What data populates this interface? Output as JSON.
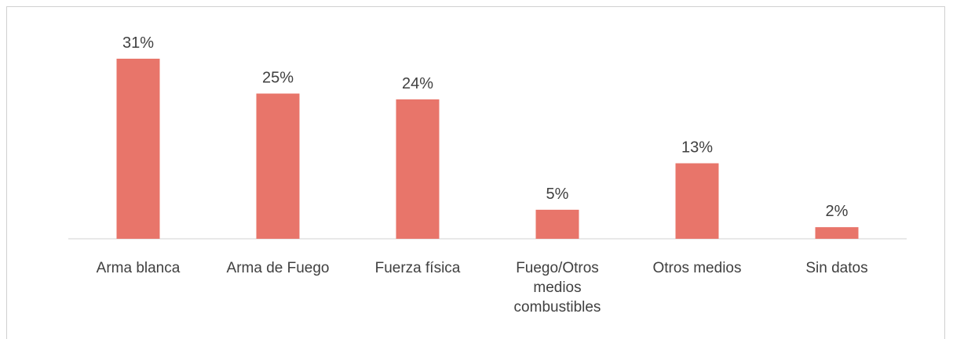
{
  "chart_data": {
    "type": "bar",
    "categories": [
      "Arma blanca",
      "Arma de Fuego",
      "Fuerza física",
      "Fuego/Otros medios combustibles",
      "Otros medios",
      "Sin datos"
    ],
    "values": [
      31,
      25,
      24,
      5,
      13,
      2
    ],
    "value_labels": [
      "31%",
      "25%",
      "24%",
      "5%",
      "13%",
      "2%"
    ],
    "color": "#e8756a"
  }
}
